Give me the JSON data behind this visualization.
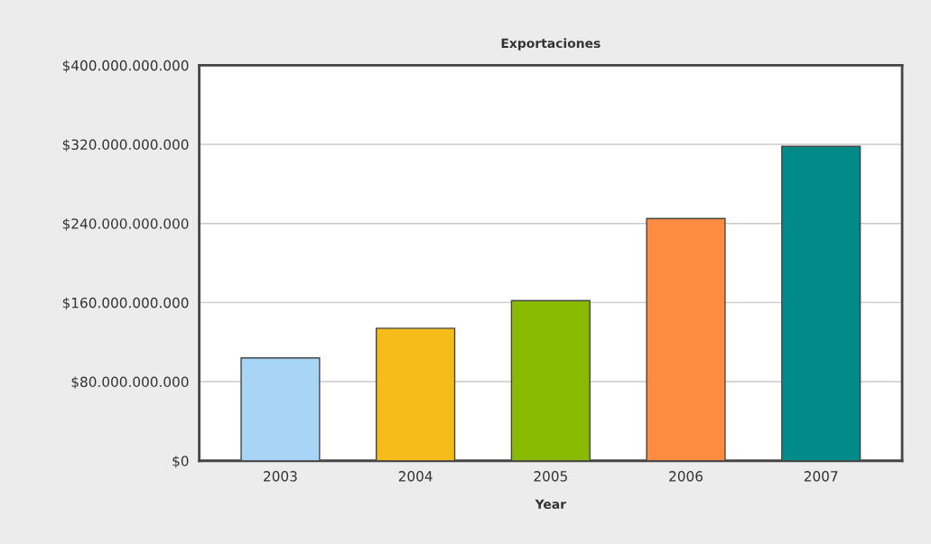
{
  "chart_data": {
    "type": "bar",
    "title": "Exportaciones",
    "xlabel": "Year",
    "categories": [
      "2003",
      "2004",
      "2005",
      "2006",
      "2007"
    ],
    "values": [
      104000000000,
      134000000000,
      162000000000,
      245000000000,
      318000000000
    ],
    "colors": [
      "#a8d4f5",
      "#f5bc1a",
      "#8aba00",
      "#ff8c40",
      "#008b8b"
    ],
    "ylim": [
      0,
      400000000000
    ],
    "yticks": [
      {
        "value": 0,
        "label": "$0"
      },
      {
        "value": 80000000000,
        "label": "$80.000.000.000"
      },
      {
        "value": 160000000000,
        "label": "$160.000.000.000"
      },
      {
        "value": 240000000000,
        "label": "$240.000.000.000"
      },
      {
        "value": 320000000000,
        "label": "$320.000.000.000"
      },
      {
        "value": 400000000000,
        "label": "$400.000.000.000"
      }
    ],
    "grid": "y",
    "legend": false
  }
}
